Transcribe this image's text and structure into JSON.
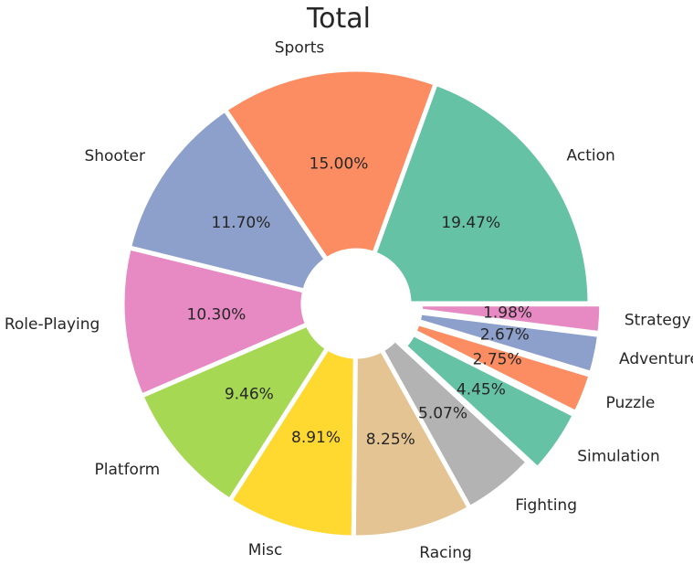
{
  "chart_data": {
    "type": "pie",
    "title": "Total",
    "donut": true,
    "start_angle_deg": 0,
    "direction": "counterclockwise",
    "categories": [
      "Action",
      "Sports",
      "Shooter",
      "Role-Playing",
      "Platform",
      "Misc",
      "Racing",
      "Fighting",
      "Simulation",
      "Puzzle",
      "Adventure",
      "Strategy"
    ],
    "values": [
      19.47,
      15.0,
      11.7,
      10.3,
      9.46,
      8.91,
      8.25,
      5.07,
      4.45,
      2.75,
      2.67,
      1.98
    ],
    "value_labels": [
      "19.47%",
      "15.00%",
      "11.70%",
      "10.30%",
      "9.46%",
      "8.91%",
      "8.25%",
      "5.07%",
      "4.45%",
      "2.75%",
      "2.67%",
      "1.98%"
    ],
    "colors": [
      "#66c2a5",
      "#fc8d62",
      "#8da0cb",
      "#e78ac3",
      "#a6d854",
      "#ffd92f",
      "#e5c494",
      "#b3b3b3",
      "#66c2a5",
      "#fc8d62",
      "#8da0cb",
      "#e78ac3"
    ],
    "explode": [
      0,
      0,
      0,
      0,
      0,
      0,
      0,
      0,
      0.05,
      0.05,
      0.05,
      0.05
    ]
  }
}
